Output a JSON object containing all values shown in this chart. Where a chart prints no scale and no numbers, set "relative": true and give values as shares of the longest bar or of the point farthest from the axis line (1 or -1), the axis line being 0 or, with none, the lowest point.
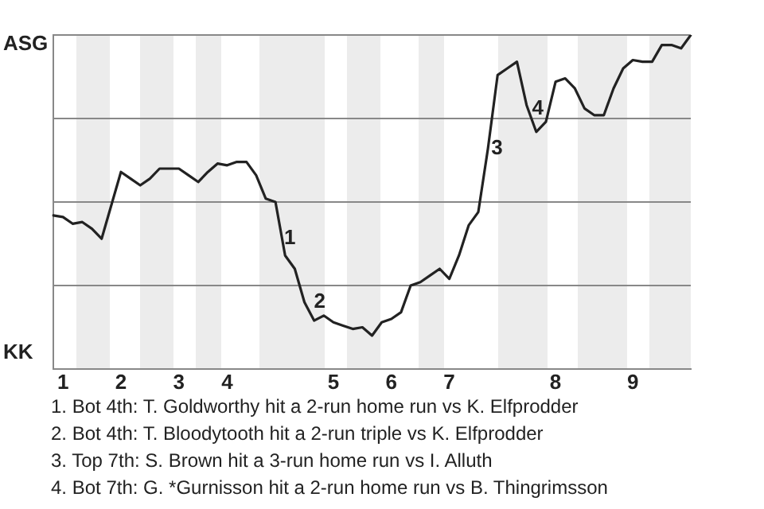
{
  "chart_data": {
    "type": "line",
    "relative": true,
    "categories": [
      null,
      "1",
      null,
      null,
      null,
      null,
      null,
      "2",
      null,
      null,
      null,
      null,
      null,
      "3",
      null,
      null,
      null,
      null,
      "4",
      null,
      null,
      null,
      null,
      null,
      null,
      null,
      null,
      null,
      null,
      "5",
      null,
      null,
      null,
      null,
      null,
      "6",
      null,
      null,
      null,
      null,
      null,
      "7",
      null,
      null,
      null,
      null,
      null,
      null,
      null,
      null,
      null,
      null,
      "8",
      null,
      null,
      null,
      null,
      null,
      null,
      null,
      "9",
      null,
      null,
      null,
      null,
      null,
      null
    ],
    "series": [
      {
        "color": "#222222",
        "values": [
          0.46,
          0.455,
          0.435,
          0.44,
          0.42,
          0.39,
          0.49,
          0.59,
          0.57,
          0.55,
          0.57,
          0.6,
          0.6,
          0.6,
          0.58,
          0.56,
          0.59,
          0.615,
          0.61,
          0.62,
          0.62,
          0.58,
          0.51,
          0.5,
          0.34,
          0.3,
          0.2,
          0.145,
          0.16,
          0.14,
          0.13,
          0.12,
          0.125,
          0.1,
          0.14,
          0.15,
          0.17,
          0.25,
          0.26,
          0.28,
          0.3,
          0.27,
          0.34,
          0.43,
          0.47,
          0.66,
          0.88,
          0.9,
          0.92,
          0.79,
          0.71,
          0.74,
          0.86,
          0.87,
          0.84,
          0.78,
          0.76,
          0.76,
          0.84,
          0.9,
          0.925,
          0.92,
          0.92,
          0.97,
          0.97,
          0.96,
          1.0
        ]
      }
    ],
    "grid": "y",
    "marker": "none",
    "line_style": "solid",
    "annotations": [
      "1",
      "2",
      "3",
      "4",
      "ASG",
      "KK",
      "1. Bot 4th: T. Goldworthy hit a 2-run home run vs K. Elfprodder",
      "2. Bot 4th: T. Bloodytooth hit a 2-run triple vs K. Elfprodder",
      "3. Top 7th: S. Brown hit a 3-run home run vs I. Alluth",
      "4. Bot 7th: G. *Gurnisson hit a 2-run home run vs B. Thingrimsson"
    ]
  }
}
